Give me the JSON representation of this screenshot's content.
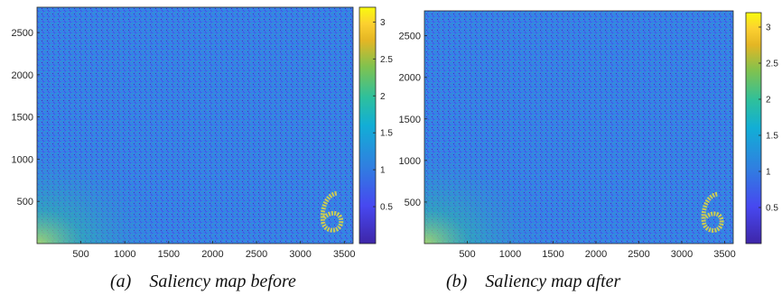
{
  "colors": {
    "low": "#3e26a8",
    "mid": "#2f80e0",
    "high": "#f9fb0e",
    "frame": "#262626"
  },
  "chart_data": [
    {
      "type": "heatmap",
      "panel": "a",
      "caption": "(a)    Saliency map before",
      "xlim": [
        0,
        3600
      ],
      "ylim": [
        0,
        2800
      ],
      "xticks": [
        500,
        1000,
        1500,
        2000,
        2500,
        3000,
        3500
      ],
      "yticks": [
        500,
        1000,
        1500,
        2000,
        2500
      ],
      "colorbar": {
        "range": [
          0,
          3.2
        ],
        "ticks": [
          "0.5",
          "1",
          "1.5",
          "2",
          "2.5",
          "3"
        ]
      }
    },
    {
      "type": "heatmap",
      "panel": "b",
      "caption": "(b)    Saliency map after",
      "xlim": [
        0,
        3600
      ],
      "ylim": [
        0,
        2800
      ],
      "xticks": [
        500,
        1000,
        1500,
        2000,
        2500,
        3000,
        3500
      ],
      "yticks": [
        500,
        1000,
        1500,
        2000,
        2500
      ],
      "colorbar": {
        "range": [
          0,
          3.2
        ],
        "ticks": [
          "0.5",
          "1",
          "1.5",
          "2",
          "2.5",
          "3"
        ]
      }
    }
  ]
}
